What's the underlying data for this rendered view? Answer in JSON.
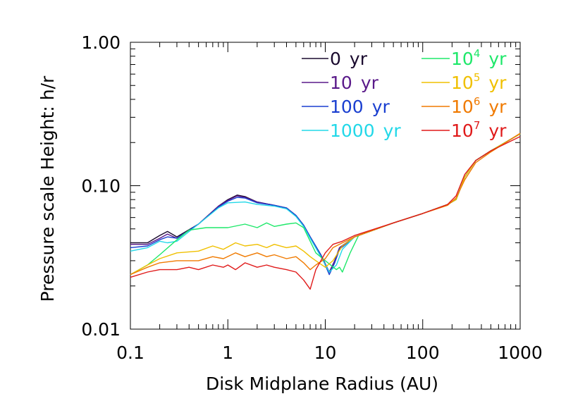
{
  "chart_data": {
    "type": "line",
    "title": "",
    "xlabel": "Disk Midplane Radius (AU)",
    "ylabel": "Pressure scale Height: h/r",
    "xscale": "log",
    "yscale": "log",
    "xlim": [
      0.1,
      1000
    ],
    "ylim": [
      0.01,
      1.0
    ],
    "grid": false,
    "legend_position": "top-right",
    "x_ticks": [
      {
        "value": 0.1,
        "label": "0.1"
      },
      {
        "value": 1,
        "label": "1"
      },
      {
        "value": 10,
        "label": "10"
      },
      {
        "value": 100,
        "label": "100"
      },
      {
        "value": 1000,
        "label": "1000"
      }
    ],
    "y_ticks": [
      {
        "value": 0.01,
        "label": "0.01"
      },
      {
        "value": 0.1,
        "label": "0.10"
      },
      {
        "value": 1.0,
        "label": "1.00"
      }
    ],
    "series": [
      {
        "name": "0 yr",
        "base": "0",
        "exp": "",
        "unit": "yr",
        "color": "#1a0a2e",
        "points": [
          [
            0.1,
            0.04
          ],
          [
            0.15,
            0.04
          ],
          [
            0.2,
            0.045
          ],
          [
            0.24,
            0.048
          ],
          [
            0.3,
            0.044
          ],
          [
            0.5,
            0.054
          ],
          [
            0.8,
            0.072
          ],
          [
            1.0,
            0.08
          ],
          [
            1.25,
            0.086
          ],
          [
            1.5,
            0.084
          ],
          [
            2.0,
            0.077
          ],
          [
            3.0,
            0.073
          ],
          [
            4.0,
            0.07
          ],
          [
            5.0,
            0.062
          ],
          [
            6.0,
            0.053
          ],
          [
            7.0,
            0.044
          ],
          [
            9.0,
            0.033
          ],
          [
            11.0,
            0.025
          ],
          [
            12.5,
            0.03
          ],
          [
            14,
            0.037
          ],
          [
            20,
            0.044
          ],
          [
            50,
            0.055
          ],
          [
            100,
            0.064
          ],
          [
            180,
            0.074
          ],
          [
            220,
            0.08
          ],
          [
            270,
            0.115
          ],
          [
            350,
            0.15
          ],
          [
            500,
            0.175
          ],
          [
            1000,
            0.23
          ]
        ]
      },
      {
        "name": "10 yr",
        "base": "10",
        "exp": "",
        "unit": "yr",
        "color": "#5a1a8a",
        "points": [
          [
            0.1,
            0.039
          ],
          [
            0.15,
            0.039
          ],
          [
            0.2,
            0.043
          ],
          [
            0.24,
            0.046
          ],
          [
            0.3,
            0.043
          ],
          [
            0.5,
            0.054
          ],
          [
            0.8,
            0.072
          ],
          [
            1.0,
            0.079
          ],
          [
            1.25,
            0.085
          ],
          [
            1.5,
            0.083
          ],
          [
            2.0,
            0.077
          ],
          [
            3.0,
            0.073
          ],
          [
            4.0,
            0.07
          ],
          [
            5.0,
            0.062
          ],
          [
            6.0,
            0.053
          ],
          [
            7.0,
            0.044
          ],
          [
            9.0,
            0.033
          ],
          [
            11.0,
            0.025
          ],
          [
            12.5,
            0.03
          ],
          [
            14,
            0.037
          ],
          [
            20,
            0.044
          ],
          [
            50,
            0.055
          ],
          [
            100,
            0.064
          ],
          [
            180,
            0.074
          ],
          [
            220,
            0.08
          ],
          [
            270,
            0.115
          ],
          [
            350,
            0.15
          ],
          [
            500,
            0.175
          ],
          [
            1000,
            0.23
          ]
        ]
      },
      {
        "name": "100 yr",
        "base": "100",
        "exp": "",
        "unit": "yr",
        "color": "#1a3fd0",
        "points": [
          [
            0.1,
            0.037
          ],
          [
            0.15,
            0.038
          ],
          [
            0.2,
            0.042
          ],
          [
            0.24,
            0.044
          ],
          [
            0.3,
            0.043
          ],
          [
            0.5,
            0.054
          ],
          [
            0.8,
            0.071
          ],
          [
            1.0,
            0.078
          ],
          [
            1.25,
            0.083
          ],
          [
            1.5,
            0.082
          ],
          [
            2.0,
            0.076
          ],
          [
            3.0,
            0.073
          ],
          [
            4.0,
            0.07
          ],
          [
            5.0,
            0.062
          ],
          [
            6.0,
            0.053
          ],
          [
            7.0,
            0.044
          ],
          [
            9.0,
            0.033
          ],
          [
            11.0,
            0.024
          ],
          [
            12.5,
            0.029
          ],
          [
            14,
            0.036
          ],
          [
            20,
            0.044
          ],
          [
            50,
            0.055
          ],
          [
            100,
            0.064
          ],
          [
            180,
            0.074
          ],
          [
            220,
            0.08
          ],
          [
            270,
            0.115
          ],
          [
            350,
            0.15
          ],
          [
            500,
            0.175
          ],
          [
            1000,
            0.23
          ]
        ]
      },
      {
        "name": "1000 yr",
        "base": "1000",
        "exp": "",
        "unit": "yr",
        "color": "#22d8e8",
        "points": [
          [
            0.1,
            0.035
          ],
          [
            0.15,
            0.037
          ],
          [
            0.2,
            0.041
          ],
          [
            0.24,
            0.04
          ],
          [
            0.3,
            0.041
          ],
          [
            0.5,
            0.054
          ],
          [
            0.8,
            0.07
          ],
          [
            1.0,
            0.076
          ],
          [
            1.5,
            0.077
          ],
          [
            2.0,
            0.074
          ],
          [
            3.0,
            0.072
          ],
          [
            4.0,
            0.069
          ],
          [
            5.0,
            0.061
          ],
          [
            6.0,
            0.052
          ],
          [
            7.0,
            0.043
          ],
          [
            9.0,
            0.032
          ],
          [
            11.0,
            0.025
          ],
          [
            13,
            0.028
          ],
          [
            15,
            0.036
          ],
          [
            20,
            0.044
          ],
          [
            50,
            0.055
          ],
          [
            100,
            0.064
          ],
          [
            180,
            0.074
          ],
          [
            220,
            0.08
          ],
          [
            270,
            0.115
          ],
          [
            350,
            0.15
          ],
          [
            500,
            0.175
          ],
          [
            1000,
            0.23
          ]
        ]
      },
      {
        "name": "10^4 yr",
        "base": "10",
        "exp": "4",
        "unit": "yr",
        "color": "#1ee86a",
        "points": [
          [
            0.1,
            0.024
          ],
          [
            0.15,
            0.028
          ],
          [
            0.2,
            0.033
          ],
          [
            0.3,
            0.042
          ],
          [
            0.4,
            0.049
          ],
          [
            0.6,
            0.051
          ],
          [
            1.0,
            0.051
          ],
          [
            1.5,
            0.054
          ],
          [
            2.0,
            0.051
          ],
          [
            2.5,
            0.055
          ],
          [
            3.0,
            0.052
          ],
          [
            4.0,
            0.054
          ],
          [
            5.0,
            0.055
          ],
          [
            6.0,
            0.051
          ],
          [
            7.0,
            0.041
          ],
          [
            8.0,
            0.034
          ],
          [
            10,
            0.03
          ],
          [
            13,
            0.026
          ],
          [
            14,
            0.027
          ],
          [
            15,
            0.025
          ],
          [
            18,
            0.034
          ],
          [
            22,
            0.045
          ],
          [
            50,
            0.055
          ],
          [
            100,
            0.064
          ],
          [
            180,
            0.074
          ],
          [
            220,
            0.08
          ],
          [
            270,
            0.115
          ],
          [
            350,
            0.15
          ],
          [
            500,
            0.175
          ],
          [
            1000,
            0.23
          ]
        ]
      },
      {
        "name": "10^5 yr",
        "base": "10",
        "exp": "5",
        "unit": "yr",
        "color": "#f0c000",
        "points": [
          [
            0.1,
            0.024
          ],
          [
            0.15,
            0.028
          ],
          [
            0.2,
            0.031
          ],
          [
            0.3,
            0.034
          ],
          [
            0.5,
            0.035
          ],
          [
            0.7,
            0.038
          ],
          [
            0.9,
            0.036
          ],
          [
            1.2,
            0.04
          ],
          [
            1.5,
            0.038
          ],
          [
            2.0,
            0.039
          ],
          [
            2.5,
            0.037
          ],
          [
            3.0,
            0.039
          ],
          [
            4.0,
            0.037
          ],
          [
            5.0,
            0.038
          ],
          [
            6.0,
            0.035
          ],
          [
            7.0,
            0.032
          ],
          [
            8.0,
            0.03
          ],
          [
            10,
            0.027
          ],
          [
            12,
            0.03
          ],
          [
            15,
            0.038
          ],
          [
            20,
            0.044
          ],
          [
            50,
            0.055
          ],
          [
            100,
            0.064
          ],
          [
            180,
            0.074
          ],
          [
            220,
            0.08
          ],
          [
            270,
            0.115
          ],
          [
            350,
            0.15
          ],
          [
            500,
            0.175
          ],
          [
            1000,
            0.23
          ]
        ]
      },
      {
        "name": "10^6 yr",
        "base": "10",
        "exp": "6",
        "unit": "yr",
        "color": "#f07a00",
        "points": [
          [
            0.1,
            0.024
          ],
          [
            0.15,
            0.027
          ],
          [
            0.2,
            0.029
          ],
          [
            0.3,
            0.03
          ],
          [
            0.5,
            0.03
          ],
          [
            0.7,
            0.032
          ],
          [
            0.9,
            0.031
          ],
          [
            1.2,
            0.034
          ],
          [
            1.5,
            0.032
          ],
          [
            2.0,
            0.034
          ],
          [
            2.5,
            0.032
          ],
          [
            3.0,
            0.033
          ],
          [
            4.0,
            0.031
          ],
          [
            5.0,
            0.032
          ],
          [
            6.0,
            0.029
          ],
          [
            7.0,
            0.026
          ],
          [
            8.0,
            0.028
          ],
          [
            10,
            0.031
          ],
          [
            12,
            0.037
          ],
          [
            15,
            0.04
          ],
          [
            20,
            0.044
          ],
          [
            50,
            0.055
          ],
          [
            100,
            0.064
          ],
          [
            180,
            0.073
          ],
          [
            220,
            0.082
          ],
          [
            270,
            0.11
          ],
          [
            350,
            0.145
          ],
          [
            500,
            0.172
          ],
          [
            1000,
            0.232
          ]
        ]
      },
      {
        "name": "10^7 yr",
        "base": "10",
        "exp": "7",
        "unit": "yr",
        "color": "#e01a1a",
        "points": [
          [
            0.1,
            0.023
          ],
          [
            0.15,
            0.025
          ],
          [
            0.2,
            0.026
          ],
          [
            0.3,
            0.026
          ],
          [
            0.4,
            0.027
          ],
          [
            0.5,
            0.026
          ],
          [
            0.7,
            0.028
          ],
          [
            0.9,
            0.027
          ],
          [
            1.0,
            0.028
          ],
          [
            1.2,
            0.026
          ],
          [
            1.5,
            0.029
          ],
          [
            2.0,
            0.027
          ],
          [
            2.5,
            0.028
          ],
          [
            3.0,
            0.027
          ],
          [
            4.0,
            0.026
          ],
          [
            5.0,
            0.025
          ],
          [
            6.0,
            0.022
          ],
          [
            7.0,
            0.019
          ],
          [
            8.0,
            0.026
          ],
          [
            10,
            0.034
          ],
          [
            12,
            0.039
          ],
          [
            15,
            0.041
          ],
          [
            20,
            0.045
          ],
          [
            50,
            0.055
          ],
          [
            100,
            0.064
          ],
          [
            180,
            0.074
          ],
          [
            220,
            0.085
          ],
          [
            270,
            0.12
          ],
          [
            350,
            0.15
          ],
          [
            500,
            0.175
          ],
          [
            1000,
            0.22
          ]
        ]
      }
    ]
  }
}
